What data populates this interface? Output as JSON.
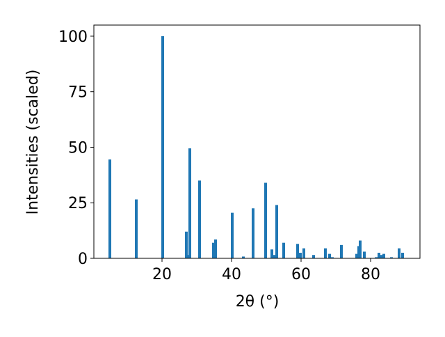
{
  "chart_data": {
    "type": "bar",
    "x_label": "2θ (°)",
    "y_label": "Intensities (scaled)",
    "color": "#1f77b4",
    "x": [
      5,
      12.6,
      20.2,
      27,
      27.4,
      28,
      30.8,
      34.8,
      35.4,
      40.2,
      43.4,
      46.2,
      49.8,
      51.6,
      52.2,
      53,
      55,
      59,
      59.8,
      60.8,
      63.6,
      67,
      68.2,
      69,
      71.6,
      76,
      76.6,
      77,
      78.2,
      81.6,
      82.4,
      83.2,
      83.8,
      86,
      88.2,
      89.2
    ],
    "values": [
      44.5,
      26.5,
      100,
      12,
      1.5,
      49.5,
      35,
      7,
      8.5,
      20.5,
      0.8,
      22.5,
      34,
      4,
      1.5,
      24,
      7,
      6.5,
      2.5,
      4.5,
      1.5,
      4.5,
      2,
      0.5,
      6,
      2,
      5.5,
      8,
      3,
      0.5,
      2.5,
      1.5,
      2,
      0.5,
      4.5,
      2.5
    ],
    "xlim": [
      0.4,
      94.2
    ],
    "ylim": [
      0,
      105
    ],
    "xticks": [
      20,
      40,
      60,
      80
    ],
    "yticks": [
      0,
      25,
      50,
      75,
      100
    ]
  }
}
